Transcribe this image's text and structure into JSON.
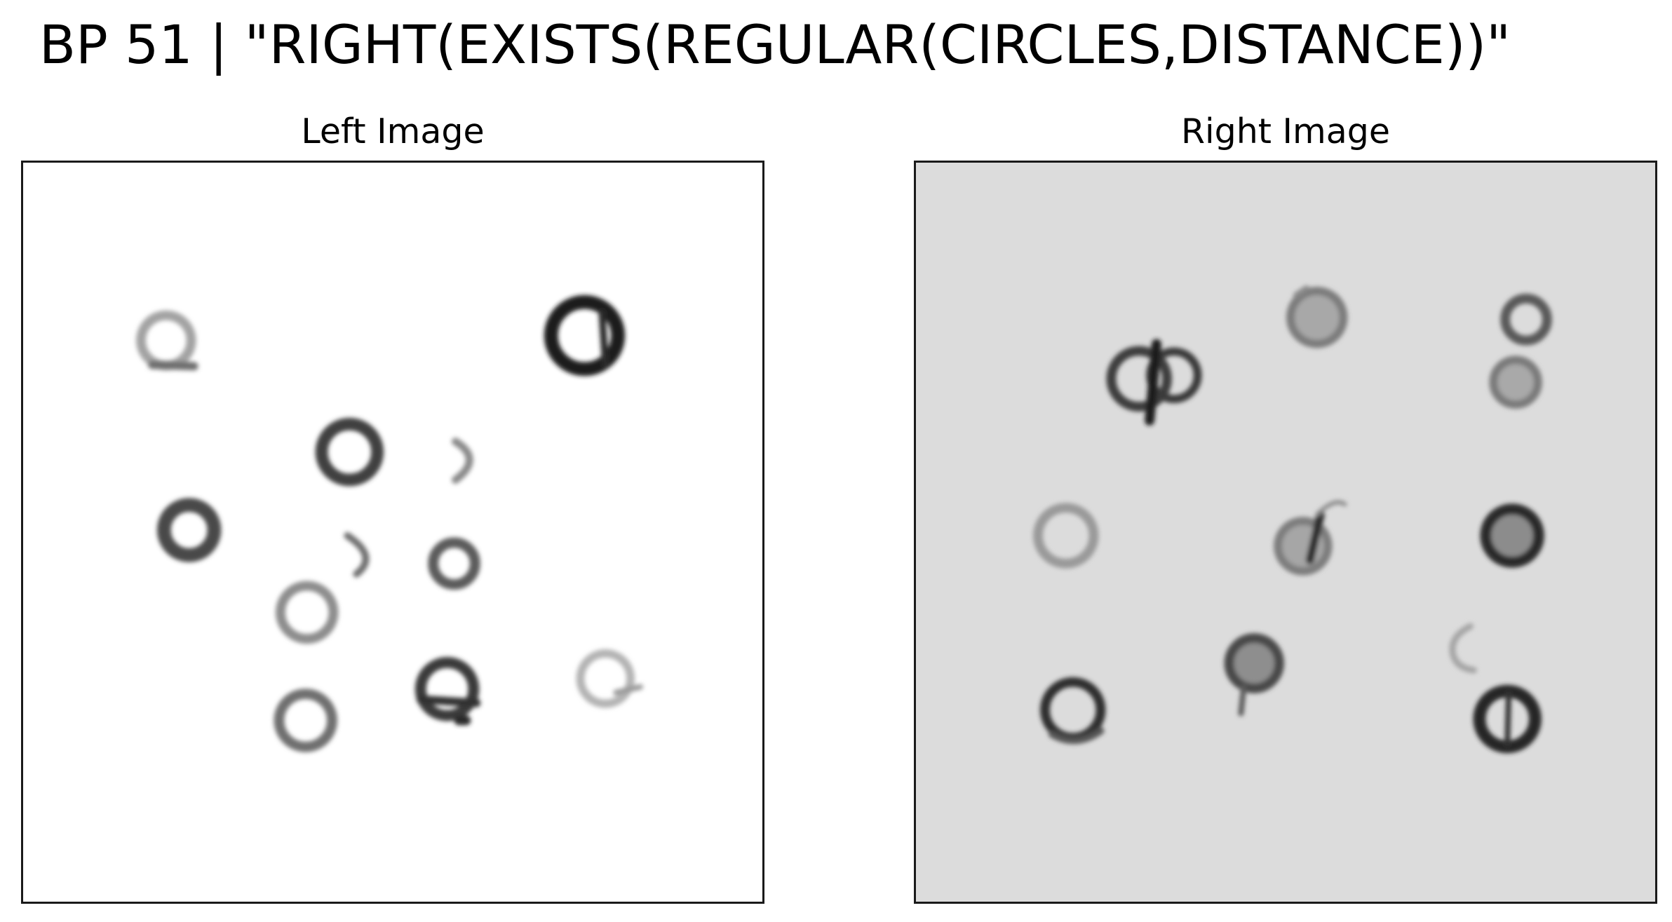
{
  "figure": {
    "title": "BP 51 | \"RIGHT(EXISTS(REGULAR(CIRCLES,DISTANCE))\""
  },
  "panels": {
    "left": {
      "title": "Left Image",
      "background": "#ffffff"
    },
    "right": {
      "title": "Right Image",
      "background": "#dcdcdc"
    }
  },
  "colors": {
    "frame": "#1a1a1a",
    "ink_dark": "#262626",
    "ink_mid": "#595959",
    "ink_light": "#9a9a9a",
    "fill_gray": "#9b9b9b"
  }
}
